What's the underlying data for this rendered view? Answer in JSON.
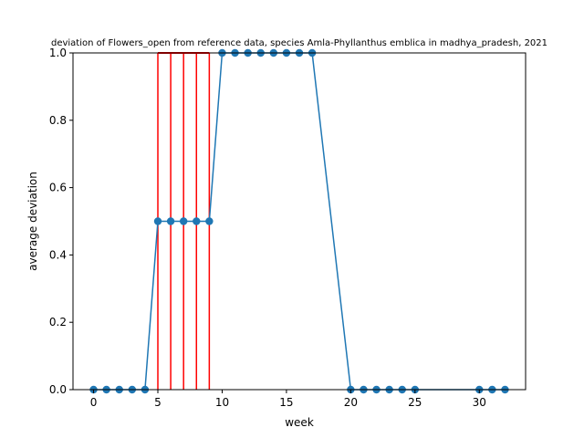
{
  "chart_data": {
    "type": "line",
    "title": "deviation of Flowers_open from reference data, species Amla-Phyllanthus emblica in madhya_pradesh, 2021",
    "xlabel": "week",
    "ylabel": "average deviation",
    "xlim": [
      -1.6,
      33.6
    ],
    "ylim": [
      0,
      1
    ],
    "xticks": [
      0,
      5,
      10,
      15,
      20,
      25,
      30
    ],
    "yticks": [
      0.0,
      0.2,
      0.4,
      0.6,
      0.8,
      1.0
    ],
    "xtick_labels": [
      "0",
      "5",
      "10",
      "15",
      "20",
      "25",
      "30"
    ],
    "ytick_labels": [
      "0.0",
      "0.2",
      "0.4",
      "0.6",
      "0.8",
      "1.0"
    ],
    "grid": false,
    "legend": "none",
    "series": [
      {
        "color": "#1f77b4",
        "marker": "circle",
        "x": [
          0,
          1,
          2,
          3,
          4,
          5,
          6,
          7,
          8,
          9,
          10,
          11,
          12,
          13,
          14,
          15,
          16,
          17,
          20,
          21,
          22,
          23,
          24,
          25,
          30,
          31,
          32
        ],
        "y": [
          0,
          0,
          0,
          0,
          0,
          0.5,
          0.5,
          0.5,
          0.5,
          0.5,
          1,
          1,
          1,
          1,
          1,
          1,
          1,
          1,
          0,
          0,
          0,
          0,
          0,
          0,
          0,
          0,
          0
        ]
      }
    ],
    "vertical_lines": {
      "color": "#ff0000",
      "x": [
        5,
        6,
        7,
        8,
        9
      ],
      "y_range": [
        0,
        1
      ]
    },
    "horizontal_segments": {
      "color": "#ff0000",
      "y": 1,
      "x_range": [
        5,
        9
      ]
    }
  }
}
